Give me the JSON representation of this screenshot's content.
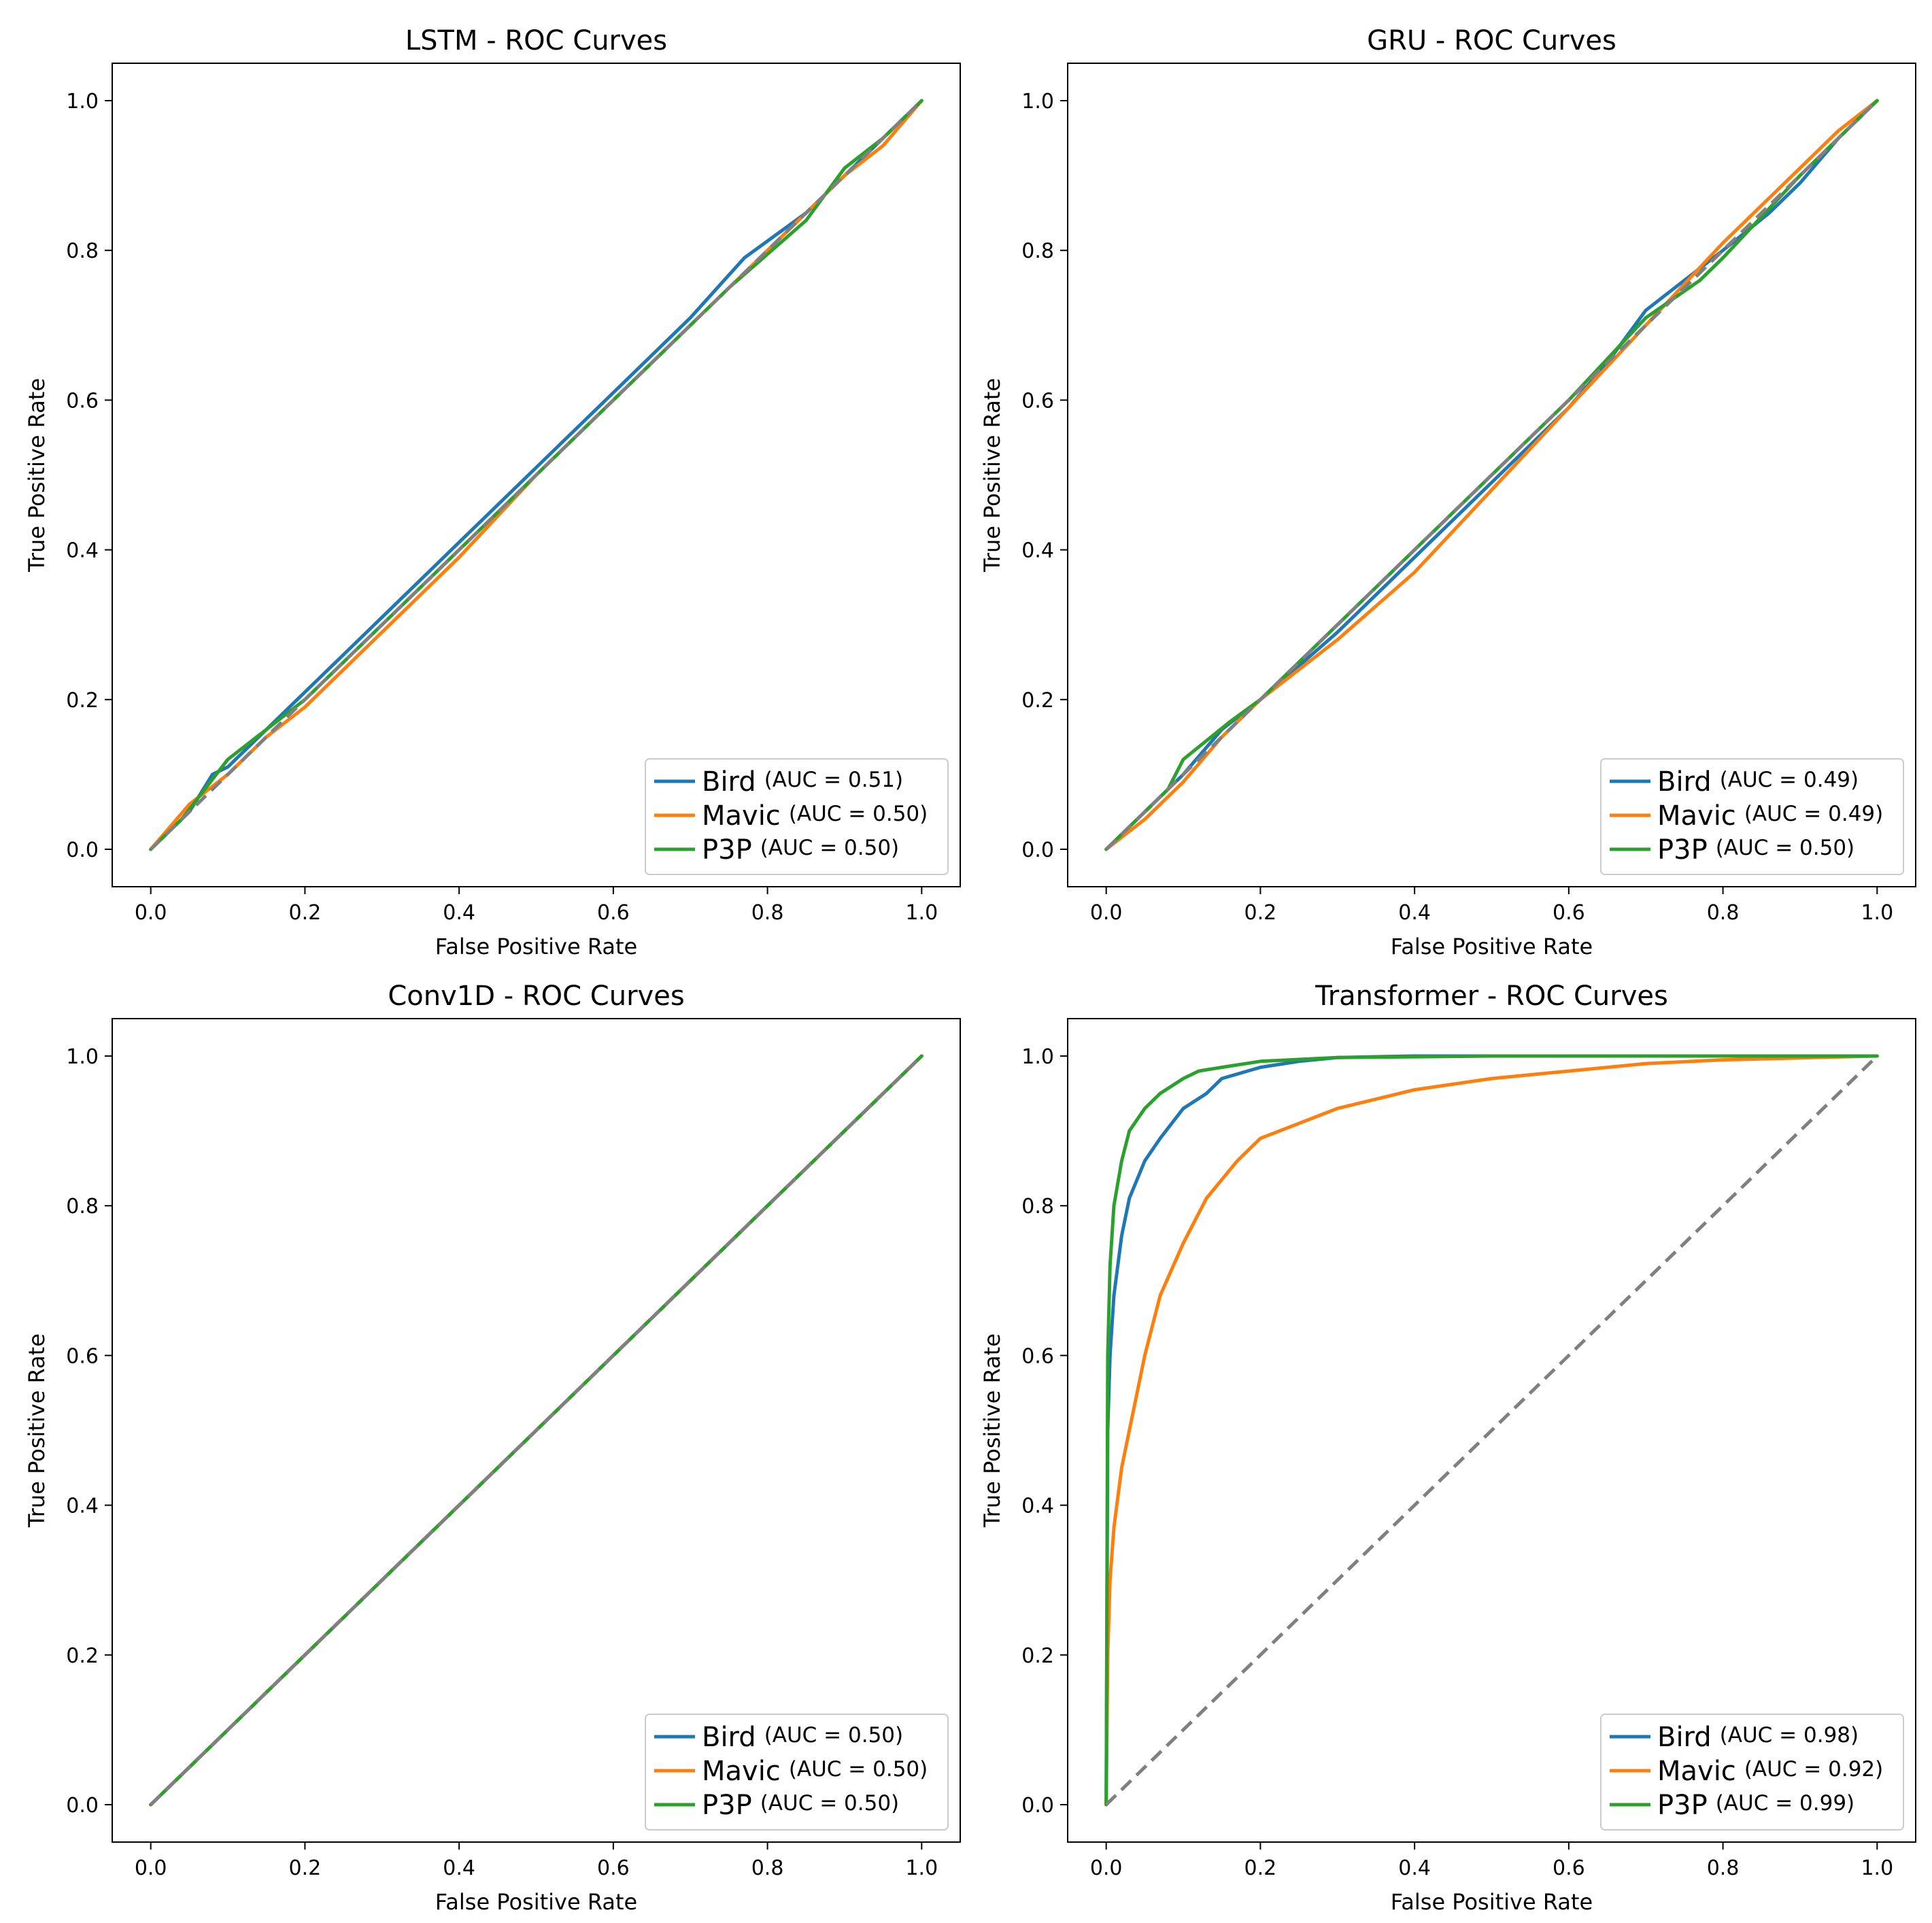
{
  "colors": {
    "Bird": "#1f77b4",
    "Mavic": "#ff7f0e",
    "P3P": "#2ca02c",
    "diagonal": "#808080"
  },
  "chart_data": [
    {
      "type": "line",
      "title": "LSTM - ROC Curves",
      "xlabel": "False Positive Rate",
      "ylabel": "True Positive Rate",
      "xlim": [
        -0.05,
        1.05
      ],
      "ylim": [
        -0.05,
        1.05
      ],
      "xticks": [
        "0.0",
        "0.2",
        "0.4",
        "0.6",
        "0.8",
        "1.0"
      ],
      "yticks": [
        "0.0",
        "0.2",
        "0.4",
        "0.6",
        "0.8",
        "1.0"
      ],
      "legend_position": "lower right",
      "diagonal": true,
      "series": [
        {
          "name": "Bird",
          "auc_label": "(AUC = 0.51)",
          "x": [
            0,
            0.05,
            0.08,
            0.1,
            0.14,
            0.18,
            0.2,
            0.3,
            0.4,
            0.5,
            0.6,
            0.7,
            0.77,
            0.85,
            0.9,
            0.95,
            1
          ],
          "y": [
            0,
            0.05,
            0.1,
            0.11,
            0.15,
            0.19,
            0.21,
            0.31,
            0.41,
            0.51,
            0.61,
            0.71,
            0.79,
            0.85,
            0.9,
            0.95,
            1
          ]
        },
        {
          "name": "Mavic",
          "auc_label": "(AUC = 0.50)",
          "x": [
            0,
            0.05,
            0.1,
            0.15,
            0.2,
            0.3,
            0.4,
            0.5,
            0.6,
            0.7,
            0.8,
            0.9,
            0.95,
            1
          ],
          "y": [
            0,
            0.06,
            0.1,
            0.15,
            0.19,
            0.29,
            0.39,
            0.5,
            0.6,
            0.7,
            0.8,
            0.9,
            0.94,
            1
          ]
        },
        {
          "name": "P3P",
          "auc_label": "(AUC = 0.50)",
          "x": [
            0,
            0.04,
            0.07,
            0.1,
            0.15,
            0.2,
            0.3,
            0.4,
            0.5,
            0.6,
            0.66,
            0.75,
            0.85,
            0.9,
            0.95,
            1
          ],
          "y": [
            0,
            0.04,
            0.08,
            0.12,
            0.16,
            0.2,
            0.3,
            0.4,
            0.5,
            0.6,
            0.66,
            0.75,
            0.84,
            0.91,
            0.95,
            1
          ]
        }
      ]
    },
    {
      "type": "line",
      "title": "GRU - ROC Curves",
      "xlabel": "False Positive Rate",
      "ylabel": "True Positive Rate",
      "xlim": [
        -0.05,
        1.05
      ],
      "ylim": [
        -0.05,
        1.05
      ],
      "xticks": [
        "0.0",
        "0.2",
        "0.4",
        "0.6",
        "0.8",
        "1.0"
      ],
      "yticks": [
        "0.0",
        "0.2",
        "0.4",
        "0.6",
        "0.8",
        "1.0"
      ],
      "legend_position": "lower right",
      "diagonal": true,
      "series": [
        {
          "name": "Bird",
          "auc_label": "(AUC = 0.49)",
          "x": [
            0,
            0.05,
            0.1,
            0.15,
            0.2,
            0.3,
            0.4,
            0.5,
            0.6,
            0.65,
            0.7,
            0.8,
            0.86,
            0.9,
            0.95,
            1
          ],
          "y": [
            0,
            0.05,
            0.1,
            0.16,
            0.2,
            0.29,
            0.39,
            0.49,
            0.59,
            0.65,
            0.72,
            0.8,
            0.85,
            0.89,
            0.95,
            1
          ]
        },
        {
          "name": "Mavic",
          "auc_label": "(AUC = 0.49)",
          "x": [
            0,
            0.05,
            0.1,
            0.15,
            0.2,
            0.3,
            0.4,
            0.5,
            0.6,
            0.7,
            0.8,
            0.9,
            0.95,
            1
          ],
          "y": [
            0,
            0.04,
            0.09,
            0.15,
            0.2,
            0.28,
            0.37,
            0.48,
            0.59,
            0.7,
            0.81,
            0.91,
            0.96,
            1
          ]
        },
        {
          "name": "P3P",
          "auc_label": "(AUC = 0.50)",
          "x": [
            0,
            0.05,
            0.08,
            0.1,
            0.16,
            0.2,
            0.3,
            0.4,
            0.5,
            0.6,
            0.7,
            0.77,
            0.8,
            0.9,
            0.95,
            1
          ],
          "y": [
            0,
            0.05,
            0.08,
            0.12,
            0.17,
            0.2,
            0.3,
            0.4,
            0.5,
            0.6,
            0.71,
            0.76,
            0.79,
            0.9,
            0.95,
            1
          ]
        }
      ]
    },
    {
      "type": "line",
      "title": "Conv1D - ROC Curves",
      "xlabel": "False Positive Rate",
      "ylabel": "True Positive Rate",
      "xlim": [
        -0.05,
        1.05
      ],
      "ylim": [
        -0.05,
        1.05
      ],
      "xticks": [
        "0.0",
        "0.2",
        "0.4",
        "0.6",
        "0.8",
        "1.0"
      ],
      "yticks": [
        "0.0",
        "0.2",
        "0.4",
        "0.6",
        "0.8",
        "1.0"
      ],
      "legend_position": "lower right",
      "diagonal": true,
      "series": [
        {
          "name": "Bird",
          "auc_label": "(AUC = 0.50)",
          "x": [
            0,
            1
          ],
          "y": [
            0,
            1
          ]
        },
        {
          "name": "Mavic",
          "auc_label": "(AUC = 0.50)",
          "x": [
            0,
            1
          ],
          "y": [
            0,
            1
          ]
        },
        {
          "name": "P3P",
          "auc_label": "(AUC = 0.50)",
          "x": [
            0,
            1
          ],
          "y": [
            0,
            1
          ]
        }
      ]
    },
    {
      "type": "line",
      "title": "Transformer - ROC Curves",
      "xlabel": "False Positive Rate",
      "ylabel": "True Positive Rate",
      "xlim": [
        -0.05,
        1.05
      ],
      "ylim": [
        -0.05,
        1.05
      ],
      "xticks": [
        "0.0",
        "0.2",
        "0.4",
        "0.6",
        "0.8",
        "1.0"
      ],
      "yticks": [
        "0.0",
        "0.2",
        "0.4",
        "0.6",
        "0.8",
        "1.0"
      ],
      "legend_position": "lower right",
      "diagonal": true,
      "series": [
        {
          "name": "Bird",
          "auc_label": "(AUC = 0.98)",
          "x": [
            0,
            0.002,
            0.005,
            0.01,
            0.02,
            0.03,
            0.05,
            0.07,
            0.1,
            0.13,
            0.15,
            0.2,
            0.25,
            0.3,
            0.4,
            0.5,
            0.7,
            1
          ],
          "y": [
            0,
            0.5,
            0.6,
            0.68,
            0.76,
            0.81,
            0.86,
            0.89,
            0.93,
            0.95,
            0.97,
            0.985,
            0.993,
            0.998,
            1,
            1,
            1,
            1
          ]
        },
        {
          "name": "Mavic",
          "auc_label": "(AUC = 0.92)",
          "x": [
            0,
            0.002,
            0.005,
            0.01,
            0.02,
            0.03,
            0.05,
            0.07,
            0.1,
            0.13,
            0.17,
            0.2,
            0.25,
            0.3,
            0.4,
            0.5,
            0.6,
            0.7,
            0.8,
            1
          ],
          "y": [
            0,
            0.2,
            0.3,
            0.37,
            0.45,
            0.5,
            0.6,
            0.68,
            0.75,
            0.81,
            0.86,
            0.89,
            0.91,
            0.93,
            0.955,
            0.97,
            0.98,
            0.99,
            0.995,
            1
          ]
        },
        {
          "name": "P3P",
          "auc_label": "(AUC = 0.99)",
          "x": [
            0,
            0.002,
            0.005,
            0.01,
            0.02,
            0.03,
            0.05,
            0.07,
            0.1,
            0.12,
            0.15,
            0.2,
            0.3,
            0.5,
            1
          ],
          "y": [
            0,
            0.6,
            0.72,
            0.8,
            0.86,
            0.9,
            0.93,
            0.95,
            0.97,
            0.98,
            0.985,
            0.993,
            0.998,
            1,
            1
          ]
        }
      ]
    }
  ]
}
